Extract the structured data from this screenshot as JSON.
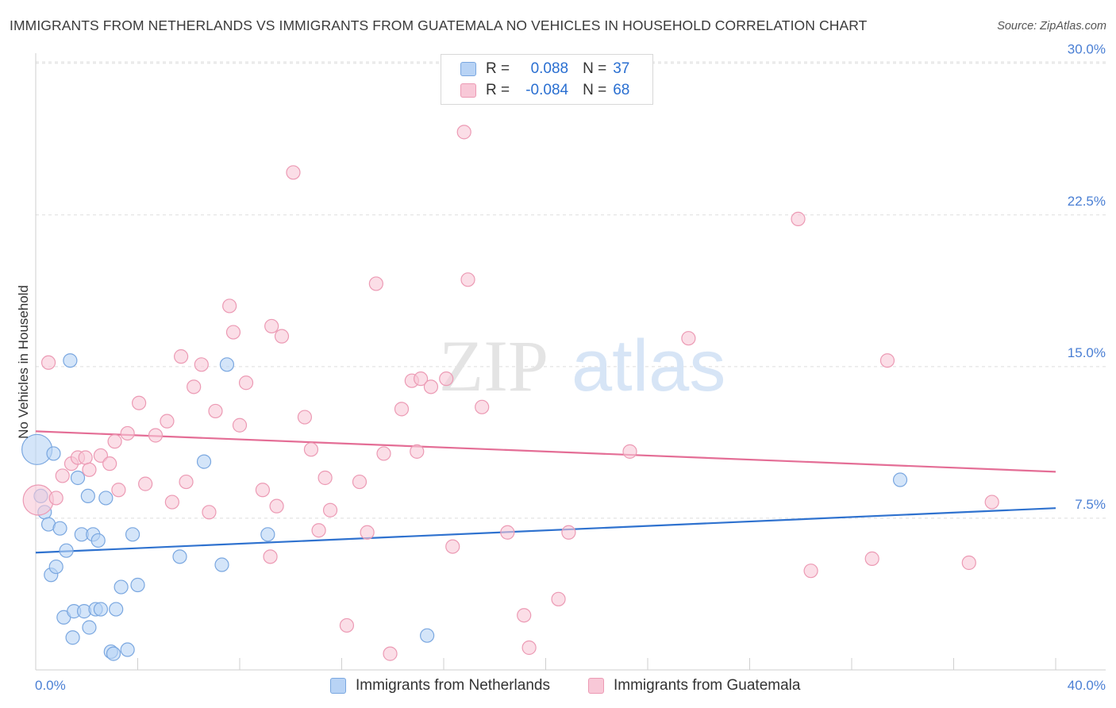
{
  "title": "IMMIGRANTS FROM NETHERLANDS VS IMMIGRANTS FROM GUATEMALA NO VEHICLES IN HOUSEHOLD CORRELATION CHART",
  "source": "Source: ZipAtlas.com",
  "watermark": {
    "zip": "ZIP",
    "atlas": "atlas"
  },
  "colors": {
    "blue_fill": "#b8d3f5",
    "blue_stroke": "#7aa7e0",
    "blue_line": "#2f72cf",
    "pink_fill": "#f8c8d7",
    "pink_stroke": "#ec9ab4",
    "pink_line": "#e46e96",
    "tick_text": "#4a7fd4"
  },
  "legend": {
    "rows": [
      {
        "r_label": "R =",
        "r_value": "0.088",
        "n_label": "N =",
        "n_value": "37"
      },
      {
        "r_label": "R =",
        "r_value": "-0.084",
        "n_label": "N =",
        "n_value": "68"
      }
    ]
  },
  "bottom_legend": [
    "Immigrants from Netherlands",
    "Immigrants from Guatemala"
  ],
  "chart_data": {
    "type": "scatter",
    "title": "IMMIGRANTS FROM NETHERLANDS VS IMMIGRANTS FROM GUATEMALA NO VEHICLES IN HOUSEHOLD CORRELATION CHART",
    "xlabel": "",
    "ylabel": "No Vehicles in Household",
    "xlim": [
      0,
      40
    ],
    "ylim": [
      0,
      30.5
    ],
    "x_tick_labels": [
      "0.0%",
      "40.0%"
    ],
    "y_ticks": [
      7.5,
      15.0,
      22.5,
      30.0
    ],
    "y_tick_labels": [
      "7.5%",
      "15.0%",
      "22.5%",
      "30.0%"
    ],
    "grid": "horizontal-dashed",
    "series": [
      {
        "name": "Immigrants from Netherlands",
        "color": "blue",
        "trend": {
          "x": [
            0,
            40
          ],
          "y": [
            5.8,
            8.0
          ]
        },
        "points": [
          {
            "x": 0.05,
            "y": 10.9,
            "big": true
          },
          {
            "x": 0.2,
            "y": 8.6,
            "big": false
          },
          {
            "x": 0.35,
            "y": 7.8,
            "big": false
          },
          {
            "x": 0.5,
            "y": 7.2,
            "big": false
          },
          {
            "x": 0.6,
            "y": 4.7,
            "big": false
          },
          {
            "x": 0.7,
            "y": 10.7,
            "big": false
          },
          {
            "x": 0.8,
            "y": 5.1,
            "big": false
          },
          {
            "x": 0.95,
            "y": 7.0,
            "big": false
          },
          {
            "x": 1.1,
            "y": 2.6,
            "big": false
          },
          {
            "x": 1.2,
            "y": 5.9,
            "big": false
          },
          {
            "x": 1.35,
            "y": 15.3,
            "big": false
          },
          {
            "x": 1.45,
            "y": 1.6,
            "big": false
          },
          {
            "x": 1.5,
            "y": 2.9,
            "big": false
          },
          {
            "x": 1.65,
            "y": 9.5,
            "big": false
          },
          {
            "x": 1.8,
            "y": 6.7,
            "big": false
          },
          {
            "x": 1.9,
            "y": 2.9,
            "big": false
          },
          {
            "x": 2.05,
            "y": 8.6,
            "big": false
          },
          {
            "x": 2.1,
            "y": 2.1,
            "big": false
          },
          {
            "x": 2.25,
            "y": 6.7,
            "big": false
          },
          {
            "x": 2.35,
            "y": 3.0,
            "big": false
          },
          {
            "x": 2.45,
            "y": 6.4,
            "big": false
          },
          {
            "x": 2.55,
            "y": 3.0,
            "big": false
          },
          {
            "x": 2.75,
            "y": 8.5,
            "big": false
          },
          {
            "x": 2.95,
            "y": 0.9,
            "big": false
          },
          {
            "x": 3.05,
            "y": 0.8,
            "big": false
          },
          {
            "x": 3.15,
            "y": 3.0,
            "big": false
          },
          {
            "x": 3.35,
            "y": 4.1,
            "big": false
          },
          {
            "x": 3.6,
            "y": 1.0,
            "big": false
          },
          {
            "x": 3.8,
            "y": 6.7,
            "big": false
          },
          {
            "x": 4.0,
            "y": 4.2,
            "big": false
          },
          {
            "x": 5.65,
            "y": 5.6,
            "big": false
          },
          {
            "x": 6.6,
            "y": 10.3,
            "big": false
          },
          {
            "x": 7.3,
            "y": 5.2,
            "big": false
          },
          {
            "x": 7.5,
            "y": 15.1,
            "big": false
          },
          {
            "x": 9.1,
            "y": 6.7,
            "big": false
          },
          {
            "x": 15.35,
            "y": 1.7,
            "big": false
          },
          {
            "x": 33.9,
            "y": 9.4,
            "big": false
          }
        ]
      },
      {
        "name": "Immigrants from Guatemala",
        "color": "pink",
        "trend": {
          "x": [
            0,
            40
          ],
          "y": [
            11.8,
            9.8
          ]
        },
        "points": [
          {
            "x": 0.1,
            "y": 8.4,
            "big": true
          },
          {
            "x": 0.5,
            "y": 15.2,
            "big": false
          },
          {
            "x": 0.8,
            "y": 8.5,
            "big": false
          },
          {
            "x": 1.05,
            "y": 9.6,
            "big": false
          },
          {
            "x": 1.4,
            "y": 10.2,
            "big": false
          },
          {
            "x": 1.65,
            "y": 10.5,
            "big": false
          },
          {
            "x": 1.95,
            "y": 10.5,
            "big": false
          },
          {
            "x": 2.1,
            "y": 9.9,
            "big": false
          },
          {
            "x": 2.55,
            "y": 10.6,
            "big": false
          },
          {
            "x": 2.9,
            "y": 10.2,
            "big": false
          },
          {
            "x": 3.1,
            "y": 11.3,
            "big": false
          },
          {
            "x": 3.25,
            "y": 8.9,
            "big": false
          },
          {
            "x": 3.6,
            "y": 11.7,
            "big": false
          },
          {
            "x": 4.05,
            "y": 13.2,
            "big": false
          },
          {
            "x": 4.3,
            "y": 9.2,
            "big": false
          },
          {
            "x": 4.7,
            "y": 11.6,
            "big": false
          },
          {
            "x": 5.15,
            "y": 12.3,
            "big": false
          },
          {
            "x": 5.35,
            "y": 8.3,
            "big": false
          },
          {
            "x": 5.7,
            "y": 15.5,
            "big": false
          },
          {
            "x": 5.9,
            "y": 9.3,
            "big": false
          },
          {
            "x": 6.2,
            "y": 14.0,
            "big": false
          },
          {
            "x": 6.5,
            "y": 15.1,
            "big": false
          },
          {
            "x": 6.8,
            "y": 7.8,
            "big": false
          },
          {
            "x": 7.05,
            "y": 12.8,
            "big": false
          },
          {
            "x": 7.6,
            "y": 18.0,
            "big": false
          },
          {
            "x": 7.75,
            "y": 16.7,
            "big": false
          },
          {
            "x": 8.0,
            "y": 12.1,
            "big": false
          },
          {
            "x": 8.25,
            "y": 14.2,
            "big": false
          },
          {
            "x": 8.9,
            "y": 8.9,
            "big": false
          },
          {
            "x": 9.2,
            "y": 5.6,
            "big": false
          },
          {
            "x": 9.25,
            "y": 17.0,
            "big": false
          },
          {
            "x": 9.45,
            "y": 8.1,
            "big": false
          },
          {
            "x": 9.65,
            "y": 16.5,
            "big": false
          },
          {
            "x": 10.1,
            "y": 24.6,
            "big": false
          },
          {
            "x": 10.55,
            "y": 12.5,
            "big": false
          },
          {
            "x": 10.8,
            "y": 10.9,
            "big": false
          },
          {
            "x": 11.1,
            "y": 6.9,
            "big": false
          },
          {
            "x": 11.35,
            "y": 9.5,
            "big": false
          },
          {
            "x": 11.55,
            "y": 7.9,
            "big": false
          },
          {
            "x": 12.2,
            "y": 2.2,
            "big": false
          },
          {
            "x": 12.7,
            "y": 9.3,
            "big": false
          },
          {
            "x": 13.0,
            "y": 6.8,
            "big": false
          },
          {
            "x": 13.35,
            "y": 19.1,
            "big": false
          },
          {
            "x": 13.65,
            "y": 10.7,
            "big": false
          },
          {
            "x": 13.9,
            "y": 0.8,
            "big": false
          },
          {
            "x": 14.35,
            "y": 12.9,
            "big": false
          },
          {
            "x": 14.75,
            "y": 14.3,
            "big": false
          },
          {
            "x": 14.95,
            "y": 10.8,
            "big": false
          },
          {
            "x": 15.1,
            "y": 14.4,
            "big": false
          },
          {
            "x": 15.5,
            "y": 14.0,
            "big": false
          },
          {
            "x": 16.1,
            "y": 14.4,
            "big": false
          },
          {
            "x": 16.35,
            "y": 6.1,
            "big": false
          },
          {
            "x": 16.8,
            "y": 26.6,
            "big": false
          },
          {
            "x": 16.95,
            "y": 19.3,
            "big": false
          },
          {
            "x": 17.5,
            "y": 13.0,
            "big": false
          },
          {
            "x": 18.5,
            "y": 6.8,
            "big": false
          },
          {
            "x": 19.15,
            "y": 2.7,
            "big": false
          },
          {
            "x": 19.35,
            "y": 1.1,
            "big": false
          },
          {
            "x": 20.5,
            "y": 3.5,
            "big": false
          },
          {
            "x": 20.9,
            "y": 6.8,
            "big": false
          },
          {
            "x": 23.3,
            "y": 10.8,
            "big": false
          },
          {
            "x": 25.6,
            "y": 16.4,
            "big": false
          },
          {
            "x": 29.9,
            "y": 22.3,
            "big": false
          },
          {
            "x": 30.4,
            "y": 4.9,
            "big": false
          },
          {
            "x": 32.8,
            "y": 5.5,
            "big": false
          },
          {
            "x": 33.4,
            "y": 15.3,
            "big": false
          },
          {
            "x": 36.6,
            "y": 5.3,
            "big": false
          },
          {
            "x": 37.5,
            "y": 8.3,
            "big": false
          }
        ]
      }
    ]
  }
}
